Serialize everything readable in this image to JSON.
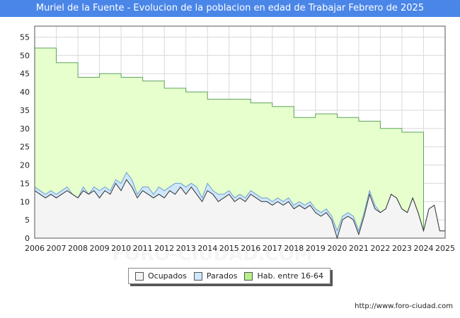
{
  "title": "Muriel de la Fuente - Evolucion de la poblacion en edad de Trabajar Febrero de 2025",
  "source": "http://www.foro-ciudad.com",
  "watermark": "FORO-CIUDAD.COM",
  "colors": {
    "title_bg": "#4a86e8",
    "hab_fill": "#e6ffcc",
    "hab_line": "#5fa35f",
    "parados_fill": "#cfe6fb",
    "parados_line": "#6a9fd1",
    "ocupados_fill": "#f4f4f4",
    "ocupados_line": "#333333"
  },
  "chart_data": {
    "type": "area",
    "title": "Muriel de la Fuente - Evolucion de la poblacion en edad de Trabajar Febrero de 2025",
    "xlabel": "",
    "ylabel": "",
    "xlim": [
      2006,
      2025
    ],
    "ylim": [
      0,
      58
    ],
    "x_ticks": [
      "2006",
      "2007",
      "2008",
      "2009",
      "2010",
      "2011",
      "2012",
      "2013",
      "2014",
      "2015",
      "2016",
      "2017",
      "2018",
      "2019",
      "2020",
      "2021",
      "2022",
      "2023",
      "2024",
      "2025"
    ],
    "y_ticks": [
      0,
      5,
      10,
      15,
      20,
      25,
      30,
      35,
      40,
      45,
      50,
      55
    ],
    "grid": true,
    "legend_position": "bottom",
    "series": [
      {
        "name": "Ocupados",
        "x": [
          2006.0,
          2006.25,
          2006.5,
          2006.75,
          2007.0,
          2007.25,
          2007.5,
          2007.75,
          2008.0,
          2008.25,
          2008.5,
          2008.75,
          2009.0,
          2009.25,
          2009.5,
          2009.75,
          2010.0,
          2010.25,
          2010.5,
          2010.75,
          2011.0,
          2011.25,
          2011.5,
          2011.75,
          2012.0,
          2012.25,
          2012.5,
          2012.75,
          2013.0,
          2013.25,
          2013.5,
          2013.75,
          2014.0,
          2014.25,
          2014.5,
          2014.75,
          2015.0,
          2015.25,
          2015.5,
          2015.75,
          2016.0,
          2016.25,
          2016.5,
          2016.75,
          2017.0,
          2017.25,
          2017.5,
          2017.75,
          2018.0,
          2018.25,
          2018.5,
          2018.75,
          2019.0,
          2019.25,
          2019.5,
          2019.75,
          2020.0,
          2020.25,
          2020.5,
          2020.75,
          2021.0,
          2021.25,
          2021.5,
          2021.75,
          2022.0,
          2022.25,
          2022.5,
          2022.75,
          2023.0,
          2023.25,
          2023.5,
          2023.75,
          2024.0,
          2024.25,
          2024.5,
          2024.75,
          2025.0
        ],
        "values": [
          13,
          12,
          11,
          12,
          11,
          12,
          13,
          12,
          11,
          13,
          12,
          13,
          11,
          13,
          12,
          15,
          13,
          16,
          14,
          11,
          13,
          12,
          11,
          12,
          11,
          13,
          12,
          14,
          12,
          14,
          12,
          10,
          13,
          12,
          10,
          11,
          12,
          10,
          11,
          10,
          12,
          11,
          10,
          10,
          9,
          10,
          9,
          10,
          8,
          9,
          8,
          9,
          7,
          6,
          7,
          5,
          0,
          5,
          6,
          5,
          1,
          6,
          12,
          8,
          7,
          8,
          12,
          11,
          8,
          7,
          11,
          7,
          2,
          8,
          9,
          2,
          2
        ]
      },
      {
        "name": "Parados",
        "x": [
          2006.0,
          2006.25,
          2006.5,
          2006.75,
          2007.0,
          2007.25,
          2007.5,
          2007.75,
          2008.0,
          2008.25,
          2008.5,
          2008.75,
          2009.0,
          2009.25,
          2009.5,
          2009.75,
          2010.0,
          2010.25,
          2010.5,
          2010.75,
          2011.0,
          2011.25,
          2011.5,
          2011.75,
          2012.0,
          2012.25,
          2012.5,
          2012.75,
          2013.0,
          2013.25,
          2013.5,
          2013.75,
          2014.0,
          2014.25,
          2014.5,
          2014.75,
          2015.0,
          2015.25,
          2015.5,
          2015.75,
          2016.0,
          2016.25,
          2016.5,
          2016.75,
          2017.0,
          2017.25,
          2017.5,
          2017.75,
          2018.0,
          2018.25,
          2018.5,
          2018.75,
          2019.0,
          2019.25,
          2019.5,
          2019.75,
          2020.0,
          2020.25,
          2020.5,
          2020.75,
          2021.0,
          2021.25,
          2021.5,
          2021.75,
          2022.0,
          2022.25,
          2022.5,
          2022.75,
          2023.0,
          2023.25,
          2023.5,
          2023.75,
          2024.0,
          2024.25,
          2024.5,
          2024.75,
          2025.0
        ],
        "values": [
          1,
          1,
          1,
          1,
          1,
          1,
          1,
          0,
          0,
          1,
          0,
          1,
          2,
          1,
          1,
          1,
          2,
          2,
          2,
          1,
          1,
          2,
          1,
          2,
          2,
          1,
          3,
          1,
          2,
          1,
          2,
          1,
          2,
          1,
          2,
          1,
          1,
          1,
          1,
          1,
          1,
          1,
          1,
          1,
          1,
          1,
          1,
          1,
          1,
          1,
          1,
          1,
          1,
          1,
          1,
          1,
          2,
          1,
          1,
          1,
          1,
          1,
          1,
          1,
          0,
          0,
          0,
          0,
          0,
          0,
          0,
          0,
          0,
          0,
          0,
          0,
          0
        ]
      },
      {
        "name": "Hab. entre 16-64",
        "x": [
          2006.0,
          2007.0,
          2008.0,
          2009.0,
          2010.0,
          2011.0,
          2012.0,
          2013.0,
          2014.0,
          2015.0,
          2016.0,
          2017.0,
          2018.0,
          2019.0,
          2020.0,
          2021.0,
          2022.0,
          2023.0,
          2024.0
        ],
        "values": [
          52,
          48,
          44,
          45,
          44,
          43,
          41,
          40,
          38,
          38,
          37,
          36,
          33,
          34,
          33,
          32,
          30,
          29,
          0
        ]
      }
    ]
  },
  "legend": {
    "ocupados": "Ocupados",
    "parados": "Parados",
    "hab": "Hab. entre 16-64"
  }
}
